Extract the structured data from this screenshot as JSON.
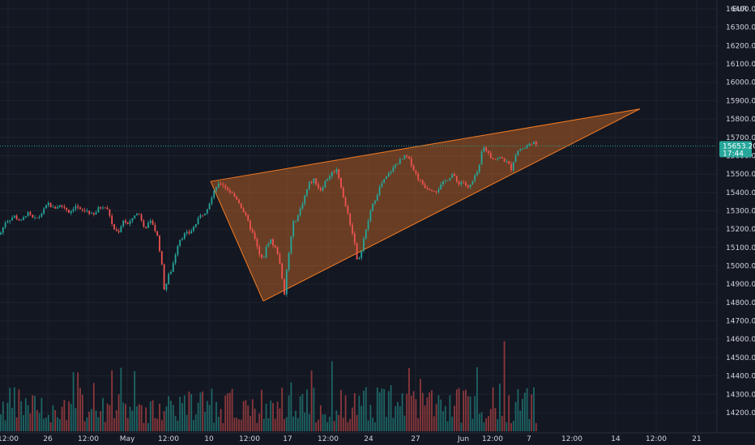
{
  "chart_data": {
    "type": "candlestick",
    "currency": "EUR",
    "y_range": [
      14140,
      16450
    ],
    "y_ticks": [
      "16400.00",
      "16300.00",
      "16200.00",
      "16100.00",
      "16000.00",
      "15900.00",
      "15800.00",
      "15700.00",
      "15600.00",
      "15500.00",
      "15400.00",
      "15300.00",
      "15200.00",
      "15100.00",
      "15000.00",
      "14900.00",
      "14800.00",
      "14700.00",
      "14600.00",
      "14500.00",
      "14400.00",
      "14300.00",
      "14200.00"
    ],
    "x_ticks": [
      "12:00",
      "26",
      "12:00",
      "May",
      "12:00",
      "10",
      "12:00",
      "17",
      "12:00",
      "24",
      "27",
      "Jun",
      "12:00",
      "7",
      "12:00",
      "14",
      "12:00",
      "21"
    ],
    "last_price": {
      "value": "15653.20",
      "countdown": "17:44"
    },
    "colors": {
      "up": "#26a69a",
      "down": "#ef5350",
      "pattern": "#f57c24",
      "background": "#131722"
    },
    "pattern": {
      "type": "rising wedge",
      "start": 15460,
      "low": 14808,
      "low_end": 15590,
      "apex": 15855
    },
    "price_path": [
      [
        0,
        15170
      ],
      [
        0.03,
        15240
      ],
      [
        0.08,
        15270
      ],
      [
        0.12,
        15240
      ],
      [
        0.15,
        15290
      ],
      [
        0.19,
        15250
      ],
      [
        0.22,
        15270
      ],
      [
        0.25,
        15310
      ],
      [
        0.27,
        15340
      ],
      [
        0.3,
        15310
      ],
      [
        0.33,
        15330
      ],
      [
        0.36,
        15320
      ],
      [
        0.39,
        15290
      ],
      [
        0.42,
        15330
      ],
      [
        0.45,
        15300
      ],
      [
        0.49,
        15300
      ],
      [
        0.52,
        15270
      ],
      [
        0.55,
        15310
      ],
      [
        0.58,
        15330
      ],
      [
        0.61,
        15290
      ],
      [
        0.63,
        15210
      ],
      [
        0.66,
        15180
      ],
      [
        0.69,
        15250
      ],
      [
        0.72,
        15220
      ],
      [
        0.75,
        15280
      ],
      [
        0.78,
        15280
      ],
      [
        0.81,
        15210
      ],
      [
        0.85,
        15240
      ],
      [
        0.88,
        15160
      ],
      [
        0.9,
        15050
      ],
      [
        0.92,
        14860
      ],
      [
        0.94,
        14940
      ],
      [
        0.96,
        14980
      ],
      [
        0.98,
        15060
      ],
      [
        1.0,
        15140
      ],
      [
        1.03,
        15170
      ],
      [
        1.06,
        15180
      ],
      [
        1.09,
        15220
      ],
      [
        1.12,
        15270
      ],
      [
        1.15,
        15300
      ],
      [
        1.18,
        15360
      ],
      [
        1.21,
        15430
      ],
      [
        1.24,
        15450
      ],
      [
        1.27,
        15420
      ],
      [
        1.3,
        15390
      ],
      [
        1.33,
        15360
      ],
      [
        1.36,
        15300
      ],
      [
        1.39,
        15230
      ],
      [
        1.42,
        15160
      ],
      [
        1.45,
        15060
      ],
      [
        1.47,
        15030
      ],
      [
        1.49,
        15100
      ],
      [
        1.51,
        15150
      ],
      [
        1.53,
        15110
      ],
      [
        1.55,
        15080
      ],
      [
        1.57,
        15000
      ],
      [
        1.58,
        14900
      ],
      [
        1.59,
        14830
      ],
      [
        1.6,
        14950
      ],
      [
        1.62,
        15100
      ],
      [
        1.64,
        15230
      ],
      [
        1.67,
        15280
      ],
      [
        1.7,
        15370
      ],
      [
        1.73,
        15450
      ],
      [
        1.76,
        15470
      ],
      [
        1.79,
        15410
      ],
      [
        1.82,
        15460
      ],
      [
        1.85,
        15500
      ],
      [
        1.88,
        15530
      ],
      [
        1.9,
        15470
      ],
      [
        1.93,
        15330
      ],
      [
        1.95,
        15270
      ],
      [
        1.97,
        15180
      ],
      [
        1.99,
        15110
      ],
      [
        2.0,
        14990
      ],
      [
        2.03,
        15130
      ],
      [
        2.05,
        15200
      ],
      [
        2.07,
        15290
      ],
      [
        2.1,
        15370
      ],
      [
        2.13,
        15440
      ],
      [
        2.16,
        15480
      ],
      [
        2.19,
        15520
      ],
      [
        2.22,
        15560
      ],
      [
        2.25,
        15580
      ],
      [
        2.27,
        15600
      ],
      [
        2.3,
        15560
      ],
      [
        2.32,
        15510
      ],
      [
        2.35,
        15460
      ],
      [
        2.38,
        15430
      ],
      [
        2.41,
        15420
      ],
      [
        2.44,
        15410
      ],
      [
        2.47,
        15440
      ],
      [
        2.5,
        15470
      ],
      [
        2.53,
        15500
      ],
      [
        2.56,
        15450
      ],
      [
        2.59,
        15460
      ],
      [
        2.62,
        15420
      ],
      [
        2.65,
        15470
      ],
      [
        2.68,
        15530
      ],
      [
        2.7,
        15650
      ],
      [
        2.72,
        15630
      ],
      [
        2.75,
        15590
      ],
      [
        2.78,
        15580
      ],
      [
        2.8,
        15590
      ],
      [
        2.83,
        15570
      ],
      [
        2.86,
        15530
      ],
      [
        2.88,
        15600
      ],
      [
        2.9,
        15630
      ],
      [
        2.93,
        15640
      ],
      [
        2.96,
        15660
      ],
      [
        2.98,
        15680
      ],
      [
        3.0,
        15650
      ]
    ],
    "volume_range": [
      0,
      100
    ]
  }
}
